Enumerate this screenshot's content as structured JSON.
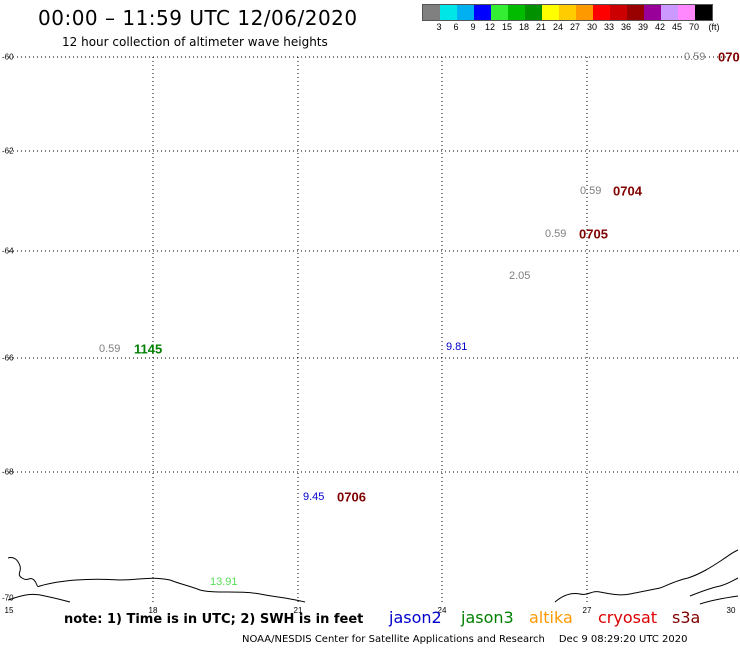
{
  "header": {
    "title": "00:00 – 11:59 UTC 12/06/2020",
    "subtitle": "12 hour collection of altimeter wave heights"
  },
  "legend": {
    "colors": [
      "#808080",
      "#00e5e5",
      "#00b0f0",
      "#0000ff",
      "#33ee33",
      "#00bb00",
      "#009000",
      "#ffff00",
      "#ffcc00",
      "#ff9900",
      "#ff0000",
      "#cc0000",
      "#990000",
      "#990099",
      "#cc99ff",
      "#ff88ff",
      "#000000"
    ],
    "labels": [
      "3",
      "6",
      "9",
      "12",
      "15",
      "18",
      "21",
      "24",
      "27",
      "30",
      "33",
      "36",
      "39",
      "42",
      "45",
      "70"
    ],
    "unit": "(ft)"
  },
  "axes": {
    "y_labels": [
      "-60",
      "-62",
      "-64",
      "-66",
      "-68",
      "-70"
    ],
    "x_labels": [
      "15",
      "18",
      "21",
      "24",
      "27",
      "30"
    ]
  },
  "annotations": [
    {
      "text": "0.59",
      "color": "#808080",
      "type": "value"
    },
    {
      "text": "070",
      "color": "#800000",
      "type": "id"
    },
    {
      "text": "0.59",
      "color": "#808080",
      "type": "value"
    },
    {
      "text": "0704",
      "color": "#800000",
      "type": "id"
    },
    {
      "text": "0.59",
      "color": "#808080",
      "type": "value"
    },
    {
      "text": "0705",
      "color": "#800000",
      "type": "id"
    },
    {
      "text": "2.05",
      "color": "#808080",
      "type": "value"
    },
    {
      "text": "0.59",
      "color": "#808080",
      "type": "value"
    },
    {
      "text": "1145",
      "color": "#008000",
      "type": "id"
    },
    {
      "text": "9.81",
      "color": "#0000cc",
      "type": "value"
    },
    {
      "text": "9.45",
      "color": "#0000cc",
      "type": "value"
    },
    {
      "text": "0706",
      "color": "#800000",
      "type": "id"
    },
    {
      "text": "13.91",
      "color": "#55dd55",
      "type": "value"
    }
  ],
  "footer": {
    "note": "note: 1) Time is in UTC; 2) SWH is in feet",
    "satellites": [
      {
        "name": "jason2",
        "color": "#0000cc"
      },
      {
        "name": "jason3",
        "color": "#008000"
      },
      {
        "name": "altika",
        "color": "#ff9900"
      },
      {
        "name": "cryosat",
        "color": "#dd0000"
      },
      {
        "name": "s3a",
        "color": "#800000"
      }
    ],
    "credit": "NOAA/NESDIS Center for Satellite Applications and Research",
    "timestamp": "Dec  9 08:29:20 UTC 2020"
  }
}
